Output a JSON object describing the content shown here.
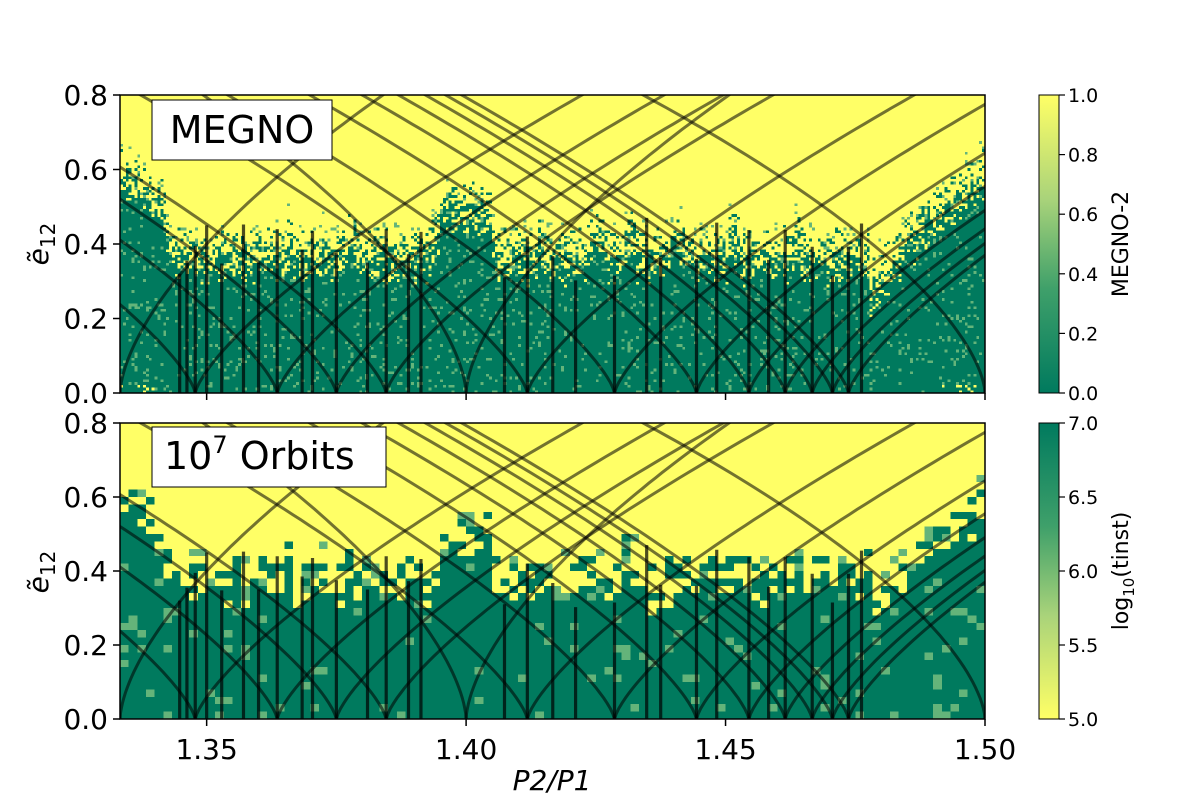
{
  "colors": {
    "yellow": "#ffff66",
    "green": "#007a5e",
    "mid_green": "#64b47a",
    "curve": "#000000"
  },
  "chart_data": [
    {
      "id": "top",
      "type": "heatmap",
      "panel_label": "MEGNO",
      "xlabel": "",
      "ylabel": "ẽ12",
      "xlim": [
        1.3333,
        1.5
      ],
      "ylim": [
        0,
        0.8
      ],
      "xticks": [
        1.35,
        1.4,
        1.45,
        1.5
      ],
      "yticks": [
        0.0,
        0.2,
        0.4,
        0.6,
        0.8
      ],
      "ytick_labels": [
        "0.0",
        "0.2",
        "0.4",
        "0.6",
        "0.8"
      ],
      "show_xtick_labels": false,
      "colorbar": {
        "label": "MEGNO-2",
        "range": [
          0.0,
          1.0
        ],
        "ticks": [
          0.0,
          0.2,
          0.4,
          0.6,
          0.8,
          1.0
        ],
        "tick_labels": [
          "0.0",
          "0.2",
          "0.4",
          "0.6",
          "0.8",
          "1.0"
        ],
        "low_color": "#007a5e",
        "high_color": "#ffff66"
      }
    },
    {
      "id": "bottom",
      "type": "heatmap",
      "panel_label": "10",
      "panel_label_sup": "7",
      "panel_label_rest": " Orbits",
      "xlabel": "P2/P1",
      "ylabel": "ẽ12",
      "xlim": [
        1.3333,
        1.5
      ],
      "ylim": [
        0,
        0.8
      ],
      "xticks": [
        1.35,
        1.4,
        1.45,
        1.5
      ],
      "xtick_labels": [
        "1.35",
        "1.40",
        "1.45",
        "1.50"
      ],
      "yticks": [
        0.0,
        0.2,
        0.4,
        0.6,
        0.8
      ],
      "ytick_labels": [
        "0.0",
        "0.2",
        "0.4",
        "0.6",
        "0.8"
      ],
      "show_xtick_labels": true,
      "colorbar": {
        "label": "log10(tinst)",
        "range": [
          5.0,
          7.0
        ],
        "ticks": [
          5.0,
          5.5,
          6.0,
          6.5,
          7.0
        ],
        "tick_labels": [
          "5.0",
          "5.5",
          "6.0",
          "6.5",
          "7.0"
        ],
        "low_color": "#ffff66",
        "high_color": "#007a5e"
      }
    }
  ],
  "resonances": {
    "first_order": [
      1.3333,
      1.4,
      1.5
    ],
    "second_order": [
      1.3478,
      1.3636,
      1.375,
      1.3846,
      1.4118,
      1.4286,
      1.4444,
      1.4545,
      1.4615,
      1.4667,
      1.4706,
      1.4737
    ],
    "vertical_lines": [
      1.3448,
      1.3462,
      1.3478,
      1.35,
      1.3529,
      1.3571,
      1.36,
      1.3636,
      1.3684,
      1.3704,
      1.375,
      1.381,
      1.3846,
      1.3889,
      1.3913,
      1.4074,
      1.4118,
      1.4167,
      1.4211,
      1.4286,
      1.4348,
      1.4375,
      1.4444,
      1.4483,
      1.4545,
      1.4583,
      1.4615,
      1.4667,
      1.4706,
      1.4737,
      1.4762
    ]
  }
}
